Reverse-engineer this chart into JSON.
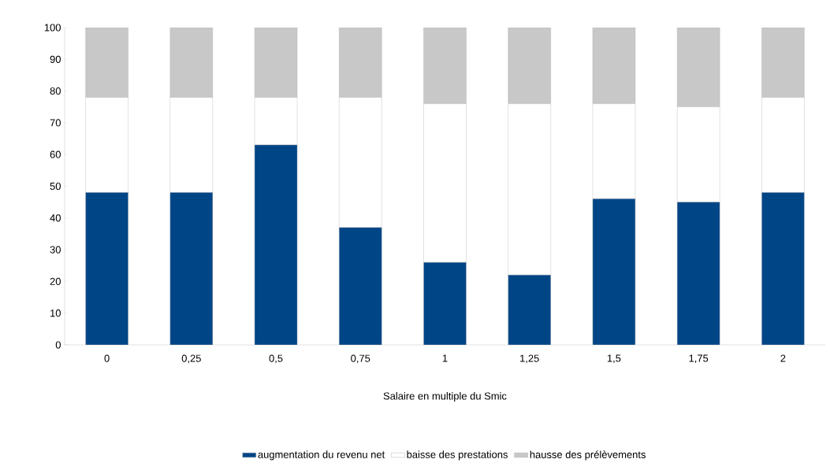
{
  "chart_data": {
    "type": "bar",
    "stacked": true,
    "xlabel": "Salaire en multiple du Smic",
    "categories": [
      "0",
      "0,25",
      "0,5",
      "0,75",
      "1",
      "1,25",
      "1,5",
      "1,75",
      "2"
    ],
    "series": [
      {
        "name": "augmentation du revenu net",
        "color": "#004586",
        "values": [
          48,
          48,
          63,
          37,
          26,
          22,
          46,
          45,
          48
        ]
      },
      {
        "name": "baisse des prestations",
        "color": "#ffffff",
        "values": [
          30,
          30,
          15,
          41,
          50,
          54,
          30,
          30,
          30
        ]
      },
      {
        "name": "hausse des prélèvements",
        "color": "#c8c8c8",
        "values": [
          22,
          22,
          22,
          22,
          24,
          24,
          24,
          25,
          22
        ]
      }
    ],
    "ylim": [
      0,
      100
    ],
    "yticks": [
      0,
      10,
      20,
      30,
      40,
      50,
      60,
      70,
      80,
      90,
      100
    ],
    "grid": false,
    "legend": "bottom"
  }
}
